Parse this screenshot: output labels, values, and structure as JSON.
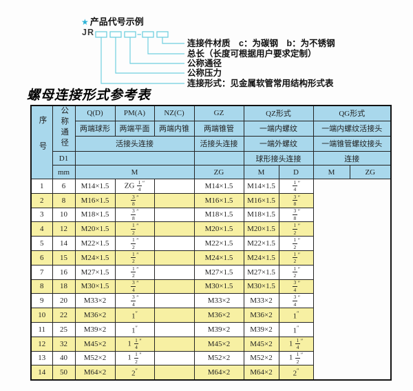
{
  "diagram": {
    "star": "★",
    "heading": "产品代号示例",
    "prefix": "JR",
    "labels": [
      "连接件材质　c：为碳钢　b：为不锈钢",
      "总长（长度可根据用户要求定制）",
      "公称通径",
      "公称压力",
      "连接形式：见金属软管常用结构形式表"
    ],
    "line_color": "#6fcfdf",
    "star_color": "#2db3d6"
  },
  "title": "螺母连接形式参考表",
  "table": {
    "colors": {
      "header_bg": "#a9d8ec",
      "row_alt_bg": "#f7f0a3",
      "border": "#222222"
    },
    "header": {
      "seq": "序号",
      "nominal_diameter": "公称通径",
      "d1": "D1",
      "unit": "mm",
      "m_label": "M",
      "qpmnz_joint": "活接头连接",
      "col_q": {
        "code": "Q(D)",
        "ends": "两端球形"
      },
      "col_pm": {
        "code": "PM(A)",
        "ends": "两端平面"
      },
      "col_nz": {
        "code": "NZ(C)",
        "ends": "两端内锥"
      },
      "col_gz": {
        "code": "GZ",
        "ends": "两端锥管",
        "joint": "活接头连接",
        "sub": "ZG"
      },
      "qz": {
        "title": "QZ形式",
        "row2": "一端内螺纹",
        "row3": "一端外螺纹",
        "row4": "球形接头连接",
        "sub1": "M",
        "sub2": "D"
      },
      "qg": {
        "title": "QG形式",
        "row2": "一端内螺纹活接头",
        "row3": "一端锥管螺纹接头",
        "row4": "连接",
        "sub1": "M",
        "sub2": "ZG"
      }
    },
    "rows": [
      {
        "seq": "1",
        "mm": "6",
        "m": "M14×1.5",
        "zg": "ZG 1/4″",
        "qz_m": "",
        "qz_d": "M14×1.5",
        "qg_m": "M14×1.5",
        "qg_zg": "1/4″"
      },
      {
        "seq": "2",
        "mm": "8",
        "m": "M16×1.5",
        "zg": "3/8″",
        "qz_m": "",
        "qz_d": "M16×1.5",
        "qg_m": "M16×1.5",
        "qg_zg": "3/8″"
      },
      {
        "seq": "3",
        "mm": "10",
        "m": "M18×1.5",
        "zg": "3/8″",
        "qz_m": "",
        "qz_d": "M18×1.5",
        "qg_m": "M18×1.5",
        "qg_zg": "3/8″"
      },
      {
        "seq": "4",
        "mm": "12",
        "m": "M20×1.5",
        "zg": "1/2″",
        "qz_m": "",
        "qz_d": "M20×1.5",
        "qg_m": "M20×1.5",
        "qg_zg": "1/2″"
      },
      {
        "seq": "5",
        "mm": "14",
        "m": "M22×1.5",
        "zg": "1/2″",
        "qz_m": "",
        "qz_d": "M22×1.5",
        "qg_m": "M22×1.5",
        "qg_zg": "1/2″"
      },
      {
        "seq": "6",
        "mm": "15",
        "m": "M24×1.5",
        "zg": "1/2″",
        "qz_m": "",
        "qz_d": "M24×1.5",
        "qg_m": "M24×1.5",
        "qg_zg": "1/2″"
      },
      {
        "seq": "7",
        "mm": "16",
        "m": "M27×1.5",
        "zg": "1/2″",
        "qz_m": "",
        "qz_d": "M27×1.5",
        "qg_m": "M27×1.5",
        "qg_zg": "1/2″"
      },
      {
        "seq": "8",
        "mm": "18",
        "m": "M30×1.5",
        "zg": "3/4″",
        "qz_m": "",
        "qz_d": "M30×1.5",
        "qg_m": "M30×1.5",
        "qg_zg": "3/4″"
      },
      {
        "seq": "9",
        "mm": "20",
        "m": "M33×2",
        "zg": "3/4″",
        "qz_m": "",
        "qz_d": "M33×2",
        "qg_m": "M33×2",
        "qg_zg": "3/4″"
      },
      {
        "seq": "10",
        "mm": "22",
        "m": "M36×2",
        "zg": "1″",
        "qz_m": "",
        "qz_d": "M36×2",
        "qg_m": "M36×2",
        "qg_zg": "1″"
      },
      {
        "seq": "11",
        "mm": "25",
        "m": "M39×2",
        "zg": "1″",
        "qz_m": "",
        "qz_d": "M39×2",
        "qg_m": "M39×2",
        "qg_zg": "1″"
      },
      {
        "seq": "12",
        "mm": "32",
        "m": "M45×2",
        "zg": "1 1/4″",
        "qz_m": "",
        "qz_d": "M45×2",
        "qg_m": "M45×2",
        "qg_zg": "1 1/4″"
      },
      {
        "seq": "13",
        "mm": "40",
        "m": "M52×2",
        "zg": "1 1/2″",
        "qz_m": "",
        "qz_d": "M52×2",
        "qg_m": "M52×2",
        "qg_zg": "1 1/2″"
      },
      {
        "seq": "14",
        "mm": "50",
        "m": "M64×2",
        "zg": "2″",
        "qz_m": "",
        "qz_d": "M64×2",
        "qg_m": "M64×2",
        "qg_zg": "2″"
      }
    ]
  }
}
